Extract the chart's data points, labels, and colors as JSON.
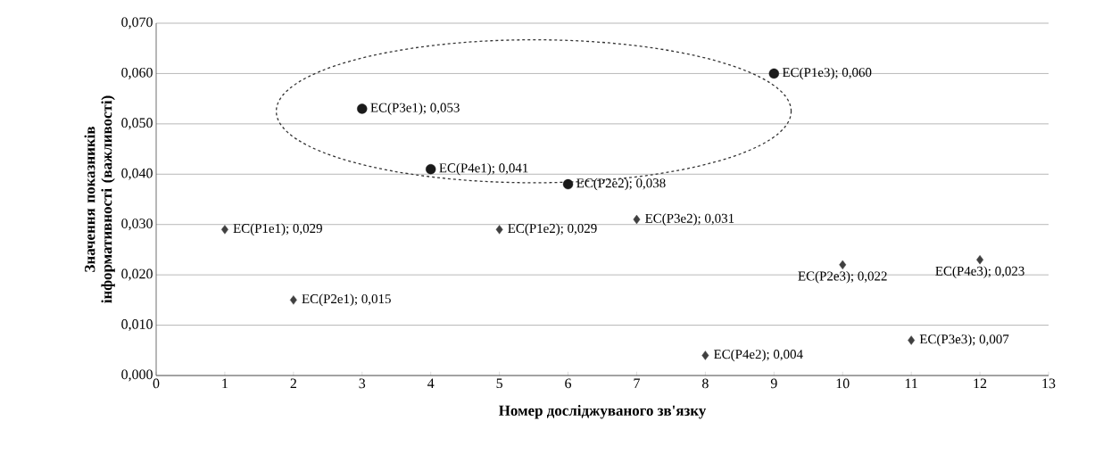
{
  "chart_data": {
    "type": "scatter",
    "xlabel": "Номер досліджуваного зв'язку",
    "ylabel": "Значення показників інформативності (важливості)",
    "xlim": [
      0,
      13
    ],
    "xticks": [
      0,
      1,
      2,
      3,
      4,
      5,
      6,
      7,
      8,
      9,
      10,
      11,
      12,
      13
    ],
    "ylim": [
      0,
      0.07
    ],
    "yticks": [
      {
        "value": 0,
        "label": "0,000"
      },
      {
        "value": 0.01,
        "label": "0,010"
      },
      {
        "value": 0.02,
        "label": "0,020"
      },
      {
        "value": 0.03,
        "label": "0,030"
      },
      {
        "value": 0.04,
        "label": "0,040"
      },
      {
        "value": 0.05,
        "label": "0,050"
      },
      {
        "value": 0.06,
        "label": "0,060"
      },
      {
        "value": 0.07,
        "label": "0,070"
      }
    ],
    "grid": "y",
    "series": [
      {
        "color": "#1a1a1a",
        "marker": "circle",
        "x": [
          3,
          4,
          6,
          9
        ],
        "values": [
          0.053,
          0.041,
          0.038,
          0.06
        ],
        "value_labels": [
          "EC(P3e1); 0,053",
          "EC(P4e1); 0,041",
          "EC(P2e2); 0,038",
          "EC(P1e3); 0,060"
        ]
      },
      {
        "color": "#404040",
        "marker": "diamond",
        "x": [
          1,
          2,
          5,
          7,
          8,
          10,
          11,
          12
        ],
        "values": [
          0.029,
          0.015,
          0.029,
          0.031,
          0.004,
          0.022,
          0.007,
          0.023
        ],
        "value_labels": [
          "EC(P1e1); 0,029",
          "EC(P2e1); 0,015",
          "EC(P1e2); 0,029",
          "EC(P3e2); 0,031",
          "EC(P4e2); 0,004",
          "EC(P2e3); 0,022",
          "EC(P3e3); 0,007",
          "EC(P4e3); 0,023"
        ]
      }
    ]
  }
}
